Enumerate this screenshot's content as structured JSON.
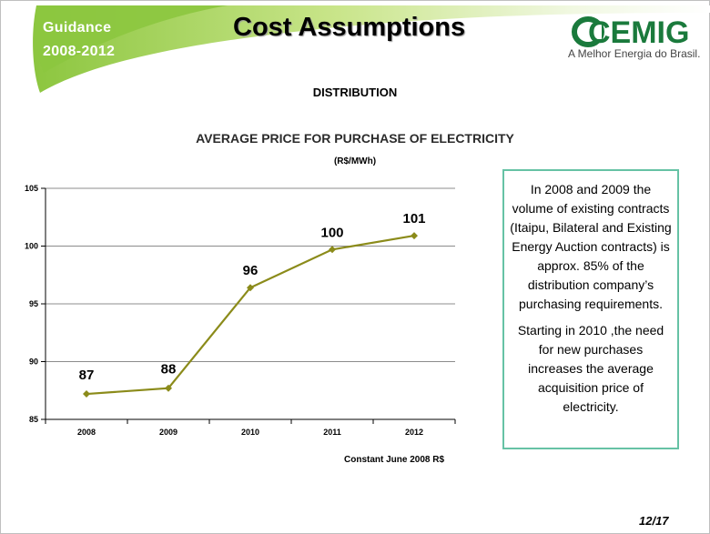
{
  "header": {
    "guidance_line1": "Guidance",
    "guidance_line2": "2008-2012",
    "title": "Cost Assumptions",
    "logo_text": "CEMIG",
    "tagline": "A Melhor Energia do Brasil."
  },
  "section_label": "DISTRIBUTION",
  "chart_data": {
    "type": "line",
    "title": "AVERAGE PRICE FOR PURCHASE OF ELECTRICITY",
    "subtitle": "(R$/MWh)",
    "xlabel": "",
    "ylabel": "",
    "categories": [
      "2008",
      "2009",
      "2010",
      "2011",
      "2012"
    ],
    "series": [
      {
        "values": [
          87.2,
          87.7,
          96.4,
          99.7,
          100.9
        ],
        "labels": [
          "87",
          "88",
          "96",
          "100",
          "101"
        ]
      }
    ],
    "ylim": [
      85,
      105
    ],
    "yticks": [
      "85",
      "90",
      "95",
      "100",
      "105"
    ],
    "grid": true,
    "legend": "none",
    "note": "Constant June 2008 R$",
    "line_color": "#8b8b1a"
  },
  "sidebar_text": [
    "In 2008 and 2009 the volume of existing contracts (Itaipu, Bilateral and Existing Energy Auction contracts) is approx. 85% of the distribution company’s purchasing requirements.",
    "Starting in 2010 ,the need for new purchases increases the average acquisition price of electricity."
  ],
  "page_number": "12/17",
  "colors": {
    "banner_green": "#9fcf3f",
    "logo_green": "#1a7a3c",
    "box_border": "#66c2a5"
  }
}
